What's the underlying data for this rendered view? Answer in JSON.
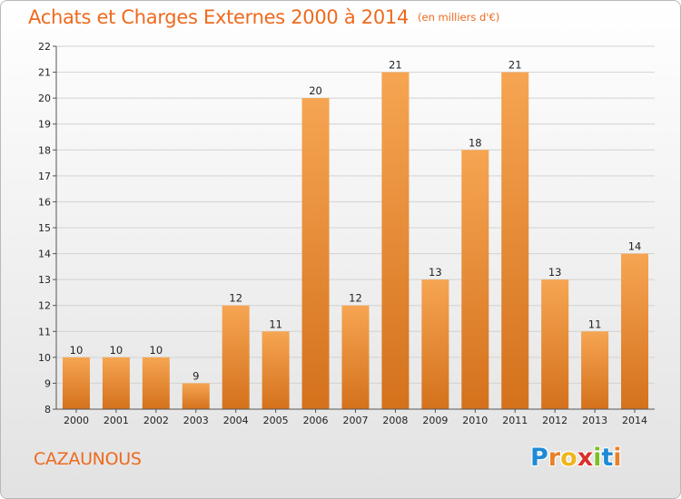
{
  "header": {
    "title": "Achats et Charges Externes 2000 à 2014",
    "unit": "(en milliers d'€)"
  },
  "footer": {
    "commune": "CAZAUNOUS",
    "logo_letters": [
      "P",
      "r",
      "o",
      "x",
      "i",
      "t",
      "i"
    ],
    "logo_colors": [
      "#1e8ad6",
      "#e8822a",
      "#f0b51e",
      "#d9302b",
      "#7bbf2a",
      "#1e8ad6",
      "#e8822a"
    ]
  },
  "colors": {
    "bar_top": "#f6a552",
    "bar_bottom": "#d4711c",
    "title": "#ee6a1e"
  },
  "chart_data": {
    "type": "bar",
    "categories": [
      "2000",
      "2001",
      "2002",
      "2003",
      "2004",
      "2005",
      "2006",
      "2007",
      "2008",
      "2009",
      "2010",
      "2011",
      "2012",
      "2013",
      "2014"
    ],
    "values": [
      10,
      10,
      10,
      9,
      12,
      11,
      20,
      12,
      21,
      13,
      18,
      21,
      13,
      11,
      14
    ],
    "ylim": [
      8,
      22
    ],
    "yticks": [
      8,
      9,
      10,
      11,
      12,
      13,
      14,
      15,
      16,
      17,
      18,
      19,
      20,
      21,
      22
    ],
    "grid": true
  }
}
